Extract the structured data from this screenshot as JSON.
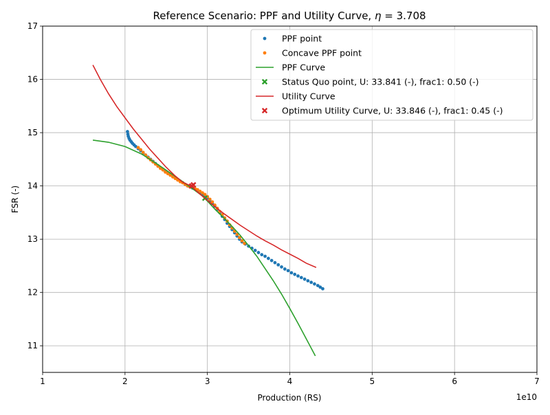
{
  "chart_data": {
    "type": "scatter",
    "title_prefix": "Reference Scenario: PPF and Utility Curve, ",
    "title_symbol": "η",
    "title_suffix": " = 3.708",
    "xlabel": "Production (RS)",
    "ylabel": "FSR (-)",
    "x_offset_label": "1e10",
    "xlim": [
      10000000000,
      70000000000
    ],
    "ylim": [
      10.5,
      17
    ],
    "x_ticks": [
      {
        "value": 10000000000,
        "label": "1"
      },
      {
        "value": 20000000000,
        "label": "2"
      },
      {
        "value": 30000000000,
        "label": "3"
      },
      {
        "value": 40000000000,
        "label": "4"
      },
      {
        "value": 50000000000,
        "label": "5"
      },
      {
        "value": 60000000000,
        "label": "6"
      },
      {
        "value": 70000000000,
        "label": "7"
      }
    ],
    "y_ticks": [
      {
        "value": 11,
        "label": "11"
      },
      {
        "value": 12,
        "label": "12"
      },
      {
        "value": 13,
        "label": "13"
      },
      {
        "value": 14,
        "label": "14"
      },
      {
        "value": 15,
        "label": "15"
      },
      {
        "value": 16,
        "label": "16"
      },
      {
        "value": 17,
        "label": "17"
      }
    ],
    "grid": true,
    "legend_placement": "top-right",
    "series": [
      {
        "name": "PPF point",
        "kind": "dots",
        "color": "#1f77b4",
        "points": [
          [
            20300000000,
            15.02
          ],
          [
            20350000000,
            14.97
          ],
          [
            20400000000,
            14.93
          ],
          [
            20500000000,
            14.89
          ],
          [
            20600000000,
            14.86
          ],
          [
            20750000000,
            14.83
          ],
          [
            20900000000,
            14.8
          ],
          [
            21100000000,
            14.77
          ],
          [
            21300000000,
            14.74
          ],
          [
            21600000000,
            14.7
          ],
          [
            21900000000,
            14.66
          ],
          [
            22200000000,
            14.62
          ],
          [
            22500000000,
            14.58
          ],
          [
            22800000000,
            14.54
          ],
          [
            23100000000,
            14.5
          ],
          [
            23400000000,
            14.46
          ],
          [
            23700000000,
            14.42
          ],
          [
            24000000000,
            14.38
          ],
          [
            24300000000,
            14.34
          ],
          [
            24600000000,
            14.31
          ],
          [
            24900000000,
            14.27
          ],
          [
            25200000000,
            14.24
          ],
          [
            25500000000,
            14.21
          ],
          [
            25800000000,
            14.18
          ],
          [
            26100000000,
            14.15
          ],
          [
            26400000000,
            14.12
          ],
          [
            26700000000,
            14.09
          ],
          [
            27000000000,
            14.06
          ],
          [
            27300000000,
            14.03
          ],
          [
            27600000000,
            14.0
          ],
          [
            27900000000,
            13.98
          ],
          [
            28200000000,
            13.96
          ],
          [
            28500000000,
            13.94
          ],
          [
            28800000000,
            13.91
          ],
          [
            29100000000,
            13.88
          ],
          [
            29400000000,
            13.85
          ],
          [
            29700000000,
            13.81
          ],
          [
            30000000000,
            13.77
          ],
          [
            30300000000,
            13.72
          ],
          [
            30600000000,
            13.67
          ],
          [
            30900000000,
            13.62
          ],
          [
            31200000000,
            13.56
          ],
          [
            31500000000,
            13.5
          ],
          [
            31800000000,
            13.43
          ],
          [
            32100000000,
            13.37
          ],
          [
            32400000000,
            13.3
          ],
          [
            32700000000,
            13.24
          ],
          [
            33000000000,
            13.18
          ],
          [
            33300000000,
            13.12
          ],
          [
            33600000000,
            13.06
          ],
          [
            33900000000,
            13.0
          ],
          [
            34200000000,
            12.95
          ],
          [
            34600000000,
            12.91
          ],
          [
            35000000000,
            12.87
          ],
          [
            35400000000,
            12.83
          ],
          [
            35800000000,
            12.79
          ],
          [
            36200000000,
            12.75
          ],
          [
            36600000000,
            12.71
          ],
          [
            37000000000,
            12.68
          ],
          [
            37400000000,
            12.64
          ],
          [
            37800000000,
            12.6
          ],
          [
            38200000000,
            12.56
          ],
          [
            38600000000,
            12.52
          ],
          [
            39000000000,
            12.48
          ],
          [
            39400000000,
            12.44
          ],
          [
            39800000000,
            12.41
          ],
          [
            40200000000,
            12.37
          ],
          [
            40600000000,
            12.34
          ],
          [
            41000000000,
            12.31
          ],
          [
            41400000000,
            12.28
          ],
          [
            41800000000,
            12.25
          ],
          [
            42200000000,
            12.22
          ],
          [
            42600000000,
            12.19
          ],
          [
            43000000000,
            12.16
          ],
          [
            43400000000,
            12.13
          ],
          [
            43700000000,
            12.1
          ],
          [
            44000000000,
            12.07
          ]
        ]
      },
      {
        "name": "Concave PPF point",
        "kind": "dots",
        "color": "#ff7f0e",
        "points": [
          [
            21600000000,
            14.72
          ],
          [
            21900000000,
            14.68
          ],
          [
            22200000000,
            14.63
          ],
          [
            22500000000,
            14.58
          ],
          [
            22800000000,
            14.53
          ],
          [
            23100000000,
            14.49
          ],
          [
            23400000000,
            14.45
          ],
          [
            23700000000,
            14.41
          ],
          [
            24000000000,
            14.37
          ],
          [
            24300000000,
            14.33
          ],
          [
            24600000000,
            14.3
          ],
          [
            24900000000,
            14.26
          ],
          [
            25200000000,
            14.23
          ],
          [
            25500000000,
            14.2
          ],
          [
            25800000000,
            14.17
          ],
          [
            26100000000,
            14.14
          ],
          [
            26400000000,
            14.11
          ],
          [
            26700000000,
            14.08
          ],
          [
            27000000000,
            14.06
          ],
          [
            27300000000,
            14.03
          ],
          [
            27600000000,
            14.0
          ],
          [
            27900000000,
            13.98
          ],
          [
            28200000000,
            13.97
          ],
          [
            28500000000,
            13.95
          ],
          [
            28800000000,
            13.93
          ],
          [
            29100000000,
            13.9
          ],
          [
            29400000000,
            13.87
          ],
          [
            29700000000,
            13.84
          ],
          [
            30000000000,
            13.8
          ],
          [
            30300000000,
            13.75
          ],
          [
            30600000000,
            13.7
          ],
          [
            30900000000,
            13.64
          ],
          [
            31200000000,
            13.58
          ],
          [
            31500000000,
            13.52
          ],
          [
            31800000000,
            13.46
          ],
          [
            32100000000,
            13.4
          ],
          [
            32400000000,
            13.34
          ],
          [
            32700000000,
            13.27
          ],
          [
            33000000000,
            13.21
          ],
          [
            33300000000,
            13.15
          ],
          [
            33600000000,
            13.09
          ],
          [
            33900000000,
            13.03
          ],
          [
            34200000000,
            12.97
          ],
          [
            34500000000,
            12.92
          ]
        ]
      },
      {
        "name": "PPF Curve",
        "kind": "line",
        "color": "#2ca02c",
        "points": [
          [
            16100000000,
            14.86
          ],
          [
            18000000000,
            14.82
          ],
          [
            20000000000,
            14.74
          ],
          [
            22000000000,
            14.6
          ],
          [
            24000000000,
            14.4
          ],
          [
            26000000000,
            14.19
          ],
          [
            28000000000,
            13.97
          ],
          [
            29500000000,
            13.8
          ],
          [
            31000000000,
            13.55
          ],
          [
            32000000000,
            13.4
          ],
          [
            33000000000,
            13.24
          ],
          [
            34000000000,
            13.07
          ],
          [
            35000000000,
            12.88
          ],
          [
            36000000000,
            12.68
          ],
          [
            37000000000,
            12.45
          ],
          [
            38000000000,
            12.22
          ],
          [
            39000000000,
            11.97
          ],
          [
            40000000000,
            11.7
          ],
          [
            41000000000,
            11.42
          ],
          [
            42000000000,
            11.13
          ],
          [
            43100000000,
            10.81
          ]
        ]
      },
      {
        "name": "Status Quo point, U: 33.841 (-), frac1: 0.50 (-)",
        "kind": "cross",
        "color": "#2ca02c",
        "points": [
          [
            29700000000,
            13.77
          ]
        ]
      },
      {
        "name": "Utility Curve",
        "kind": "line",
        "color": "#d62728",
        "points": [
          [
            16100000000,
            16.27
          ],
          [
            17000000000,
            16.0
          ],
          [
            18000000000,
            15.73
          ],
          [
            19000000000,
            15.49
          ],
          [
            20000000000,
            15.28
          ],
          [
            21000000000,
            15.07
          ],
          [
            22000000000,
            14.88
          ],
          [
            23000000000,
            14.69
          ],
          [
            24000000000,
            14.52
          ],
          [
            25000000000,
            14.35
          ],
          [
            26000000000,
            14.2
          ],
          [
            27000000000,
            14.07
          ],
          [
            28000000000,
            14.0
          ],
          [
            29000000000,
            13.86
          ],
          [
            30000000000,
            13.73
          ],
          [
            31000000000,
            13.6
          ],
          [
            32000000000,
            13.48
          ],
          [
            33000000000,
            13.37
          ],
          [
            34000000000,
            13.26
          ],
          [
            35000000000,
            13.16
          ],
          [
            36000000000,
            13.06
          ],
          [
            37000000000,
            12.97
          ],
          [
            38000000000,
            12.89
          ],
          [
            39000000000,
            12.8
          ],
          [
            40000000000,
            12.72
          ],
          [
            41000000000,
            12.64
          ],
          [
            42000000000,
            12.55
          ],
          [
            43200000000,
            12.47
          ]
        ]
      },
      {
        "name": "Optimum Utility Curve, U: 33.846 (-), frac1: 0.45 (-)",
        "kind": "cross",
        "color": "#d62728",
        "points": [
          [
            28100000000,
            14.0
          ],
          [
            28300000000,
            14.02
          ]
        ]
      }
    ]
  }
}
